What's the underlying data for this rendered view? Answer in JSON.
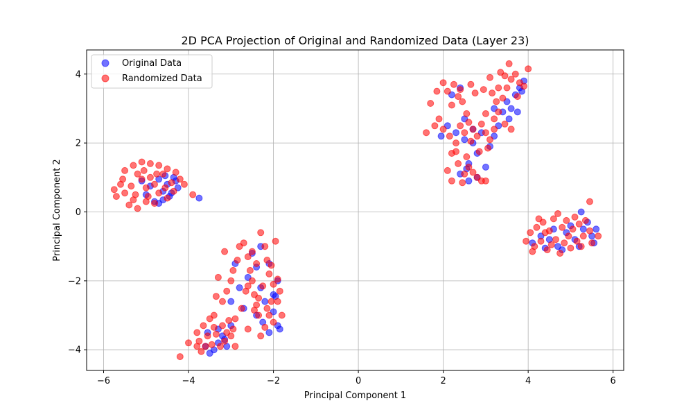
{
  "chart_data": {
    "type": "scatter",
    "title": "2D PCA Projection of Original and Randomized Data (Layer 23)",
    "xlabel": "Principal Component 1",
    "ylabel": "Principal Component 2",
    "xlim": [
      -6.4,
      6.25
    ],
    "ylim": [
      -4.6,
      4.7
    ],
    "xticks": [
      -6,
      -4,
      -2,
      0,
      2,
      4,
      6
    ],
    "xtick_labels": [
      "−6",
      "−4",
      "−2",
      "0",
      "2",
      "4",
      "6"
    ],
    "yticks": [
      -4,
      -2,
      0,
      2,
      4
    ],
    "ytick_labels": [
      "−4",
      "−2",
      "0",
      "2",
      "4"
    ],
    "grid": true,
    "legend_position": "top-left",
    "marker_alpha": 0.55,
    "series": [
      {
        "name": "Original Data",
        "color": "#0000ff",
        "points": [
          [
            -5.1,
            0.9
          ],
          [
            -4.9,
            0.75
          ],
          [
            -4.7,
            0.95
          ],
          [
            -4.6,
            0.6
          ],
          [
            -4.5,
            0.8
          ],
          [
            -4.4,
            0.55
          ],
          [
            -4.3,
            0.9
          ],
          [
            -4.25,
            0.7
          ],
          [
            -4.45,
            0.45
          ],
          [
            -4.6,
            0.35
          ],
          [
            -4.8,
            0.3
          ],
          [
            -5.0,
            0.5
          ],
          [
            -4.7,
            0.25
          ],
          [
            -4.35,
            1.0
          ],
          [
            -4.55,
            1.05
          ],
          [
            -3.75,
            0.4
          ],
          [
            -3.6,
            -3.9
          ],
          [
            -3.5,
            -4.1
          ],
          [
            -3.3,
            -3.8
          ],
          [
            -3.2,
            -3.6
          ],
          [
            -3.3,
            -3.4
          ],
          [
            -3.1,
            -3.9
          ],
          [
            -3.4,
            -4.0
          ],
          [
            -3.15,
            -3.7
          ],
          [
            -3.0,
            -3.3
          ],
          [
            -3.55,
            -3.5
          ],
          [
            -3.0,
            -2.6
          ],
          [
            -2.8,
            -2.2
          ],
          [
            -2.6,
            -1.9
          ],
          [
            -2.4,
            -1.6
          ],
          [
            -2.3,
            -2.2
          ],
          [
            -2.2,
            -2.6
          ],
          [
            -2.0,
            -2.4
          ],
          [
            -1.9,
            -3.3
          ],
          [
            -2.1,
            -3.5
          ],
          [
            -2.5,
            -1.2
          ],
          [
            -2.3,
            -1.0
          ],
          [
            -2.7,
            -2.8
          ],
          [
            -1.9,
            -2.0
          ],
          [
            -2.0,
            -2.9
          ],
          [
            -1.85,
            -3.4
          ],
          [
            -2.4,
            -3.0
          ],
          [
            -2.9,
            -1.5
          ],
          [
            -2.1,
            -1.5
          ],
          [
            -2.25,
            -3.2
          ],
          [
            -1.95,
            -2.45
          ],
          [
            1.95,
            2.2
          ],
          [
            2.1,
            2.5
          ],
          [
            2.3,
            2.3
          ],
          [
            2.5,
            2.1
          ],
          [
            2.7,
            2.0
          ],
          [
            2.9,
            2.3
          ],
          [
            2.8,
            1.7
          ],
          [
            2.6,
            1.4
          ],
          [
            2.4,
            1.1
          ],
          [
            2.6,
            0.9
          ],
          [
            2.8,
            1.0
          ],
          [
            3.0,
            1.3
          ],
          [
            3.1,
            1.9
          ],
          [
            3.2,
            2.2
          ],
          [
            3.3,
            2.5
          ],
          [
            3.4,
            2.9
          ],
          [
            3.5,
            3.2
          ],
          [
            3.6,
            3.0
          ],
          [
            3.7,
            3.4
          ],
          [
            3.8,
            3.6
          ],
          [
            3.9,
            3.8
          ],
          [
            3.85,
            3.5
          ],
          [
            3.55,
            2.7
          ],
          [
            3.75,
            2.9
          ],
          [
            3.2,
            3.0
          ],
          [
            2.2,
            3.4
          ],
          [
            2.4,
            3.6
          ],
          [
            2.5,
            2.7
          ],
          [
            2.7,
            2.4
          ],
          [
            2.55,
            1.25
          ],
          [
            4.1,
            -0.9
          ],
          [
            4.3,
            -0.7
          ],
          [
            4.5,
            -0.8
          ],
          [
            4.7,
            -1.0
          ],
          [
            4.9,
            -0.6
          ],
          [
            5.1,
            -0.8
          ],
          [
            5.3,
            -0.5
          ],
          [
            5.5,
            -0.7
          ],
          [
            5.6,
            -0.5
          ],
          [
            5.2,
            -1.0
          ],
          [
            4.8,
            -1.1
          ],
          [
            5.0,
            -0.4
          ],
          [
            5.25,
            0.0
          ],
          [
            4.6,
            -0.5
          ],
          [
            5.55,
            -0.9
          ],
          [
            5.4,
            -0.3
          ],
          [
            4.4,
            -1.05
          ]
        ]
      },
      {
        "name": "Randomized Data",
        "color": "#ff0000",
        "points": [
          [
            -5.2,
            0.1
          ],
          [
            -4.1,
            0.8
          ],
          [
            -3.9,
            0.5
          ],
          [
            -5.55,
            0.95
          ],
          [
            -5.75,
            0.65
          ],
          [
            -5.7,
            0.45
          ],
          [
            -5.5,
            1.2
          ],
          [
            -5.3,
            1.35
          ],
          [
            -5.1,
            1.45
          ],
          [
            -4.9,
            1.4
          ],
          [
            -4.7,
            1.35
          ],
          [
            -4.5,
            1.25
          ],
          [
            -4.3,
            1.15
          ],
          [
            -4.2,
            0.95
          ],
          [
            -4.35,
            0.6
          ],
          [
            -4.5,
            0.4
          ],
          [
            -4.8,
            0.25
          ],
          [
            -5.0,
            0.3
          ],
          [
            -5.3,
            0.35
          ],
          [
            -5.5,
            0.55
          ],
          [
            -5.6,
            0.8
          ],
          [
            -5.4,
            0.2
          ],
          [
            -5.25,
            0.5
          ],
          [
            -5.2,
            1.1
          ],
          [
            -5.0,
            0.7
          ],
          [
            -4.9,
            1.0
          ],
          [
            -4.8,
            0.8
          ],
          [
            -4.7,
            0.55
          ],
          [
            -4.6,
            1.1
          ],
          [
            -4.4,
            0.85
          ],
          [
            -5.1,
            0.95
          ],
          [
            -5.35,
            0.75
          ],
          [
            -4.95,
            0.45
          ],
          [
            -4.55,
            0.7
          ],
          [
            -5.05,
            1.2
          ],
          [
            -4.75,
            1.1
          ],
          [
            -4.2,
            -4.2
          ],
          [
            -4.0,
            -3.8
          ],
          [
            -3.8,
            -3.5
          ],
          [
            -3.7,
            -4.05
          ],
          [
            -3.65,
            -3.3
          ],
          [
            -3.5,
            -3.1
          ],
          [
            -3.4,
            -3.0
          ],
          [
            -3.2,
            -3.3
          ],
          [
            -3.1,
            -3.5
          ],
          [
            -3.0,
            -3.6
          ],
          [
            -2.9,
            -3.9
          ],
          [
            -2.95,
            -3.4
          ],
          [
            -3.45,
            -3.85
          ],
          [
            -3.55,
            -3.6
          ],
          [
            -3.35,
            -3.55
          ],
          [
            -3.25,
            -3.9
          ],
          [
            -3.6,
            -3.9
          ],
          [
            -3.8,
            -3.9
          ],
          [
            -3.4,
            -3.35
          ],
          [
            -3.15,
            -3.75
          ],
          [
            -3.05,
            -3.15
          ],
          [
            -3.75,
            -3.75
          ],
          [
            -3.2,
            -2.6
          ],
          [
            -3.1,
            -2.3
          ],
          [
            -3.0,
            -2.0
          ],
          [
            -2.95,
            -1.7
          ],
          [
            -2.85,
            -1.4
          ],
          [
            -2.8,
            -1.0
          ],
          [
            -2.7,
            -0.9
          ],
          [
            -2.6,
            -1.3
          ],
          [
            -2.55,
            -1.7
          ],
          [
            -2.5,
            -2.0
          ],
          [
            -2.45,
            -2.4
          ],
          [
            -2.4,
            -2.7
          ],
          [
            -2.35,
            -3.0
          ],
          [
            -2.3,
            -0.6
          ],
          [
            -2.2,
            -1.0
          ],
          [
            -2.15,
            -1.4
          ],
          [
            -2.1,
            -1.8
          ],
          [
            -2.0,
            -2.1
          ],
          [
            -1.9,
            -1.95
          ],
          [
            -1.85,
            -2.3
          ],
          [
            -2.05,
            -2.6
          ],
          [
            -2.1,
            -3.0
          ],
          [
            -2.2,
            -3.35
          ],
          [
            -2.3,
            -3.6
          ],
          [
            -2.0,
            -3.2
          ],
          [
            -1.95,
            -0.85
          ],
          [
            -2.4,
            -1.5
          ],
          [
            -2.65,
            -2.3
          ],
          [
            -2.75,
            -2.8
          ],
          [
            -2.9,
            -3.1
          ],
          [
            -3.3,
            -1.9
          ],
          [
            -3.35,
            -2.45
          ],
          [
            -3.15,
            -1.15
          ],
          [
            -2.5,
            -1.15
          ],
          [
            -2.25,
            -2.15
          ],
          [
            -1.8,
            -3.0
          ],
          [
            -2.6,
            -3.4
          ],
          [
            -2.45,
            -2.85
          ],
          [
            -2.05,
            -1.55
          ],
          [
            -2.35,
            -2.5
          ],
          [
            -2.15,
            -2.8
          ],
          [
            -1.9,
            -2.6
          ],
          [
            -2.6,
            -2.15
          ],
          [
            1.6,
            2.3
          ],
          [
            1.7,
            3.15
          ],
          [
            1.8,
            2.5
          ],
          [
            1.9,
            2.7
          ],
          [
            1.85,
            3.5
          ],
          [
            2.0,
            3.75
          ],
          [
            2.2,
            3.1
          ],
          [
            2.1,
            3.5
          ],
          [
            2.25,
            3.7
          ],
          [
            2.35,
            3.35
          ],
          [
            2.4,
            3.55
          ],
          [
            2.45,
            3.2
          ],
          [
            2.0,
            2.4
          ],
          [
            2.15,
            2.2
          ],
          [
            2.3,
            2.0
          ],
          [
            2.2,
            1.7
          ],
          [
            2.1,
            1.2
          ],
          [
            2.2,
            0.9
          ],
          [
            2.35,
            1.4
          ],
          [
            2.5,
            1.1
          ],
          [
            2.6,
            1.3
          ],
          [
            2.7,
            1.15
          ],
          [
            2.8,
            1.0
          ],
          [
            2.9,
            0.9
          ],
          [
            2.45,
            0.85
          ],
          [
            2.3,
            1.75
          ],
          [
            2.55,
            1.6
          ],
          [
            2.4,
            2.5
          ],
          [
            2.5,
            2.3
          ],
          [
            2.6,
            2.6
          ],
          [
            2.7,
            2.4
          ],
          [
            2.8,
            2.2
          ],
          [
            2.9,
            2.55
          ],
          [
            3.0,
            2.3
          ],
          [
            3.1,
            2.1
          ],
          [
            3.2,
            2.7
          ],
          [
            3.3,
            2.9
          ],
          [
            3.25,
            3.2
          ],
          [
            3.15,
            3.45
          ],
          [
            3.3,
            3.6
          ],
          [
            3.4,
            3.3
          ],
          [
            3.5,
            3.6
          ],
          [
            3.6,
            3.85
          ],
          [
            3.7,
            4.0
          ],
          [
            3.8,
            3.75
          ],
          [
            3.9,
            3.65
          ],
          [
            4.0,
            4.15
          ],
          [
            3.55,
            4.3
          ],
          [
            3.35,
            4.05
          ],
          [
            3.1,
            3.9
          ],
          [
            3.0,
            2.85
          ],
          [
            2.95,
            3.55
          ],
          [
            2.75,
            3.45
          ],
          [
            2.65,
            3.7
          ],
          [
            3.45,
            2.55
          ],
          [
            3.6,
            2.4
          ],
          [
            3.05,
            1.85
          ],
          [
            2.85,
            1.75
          ],
          [
            2.55,
            2.85
          ],
          [
            2.65,
            2.05
          ],
          [
            3.45,
            3.95
          ],
          [
            3.75,
            3.35
          ],
          [
            3.2,
            2.4
          ],
          [
            3.0,
            0.9
          ],
          [
            3.95,
            -0.85
          ],
          [
            4.05,
            -0.6
          ],
          [
            4.15,
            -1.0
          ],
          [
            4.2,
            -0.45
          ],
          [
            4.3,
            -0.85
          ],
          [
            4.35,
            -0.3
          ],
          [
            4.45,
            -1.1
          ],
          [
            4.5,
            -0.55
          ],
          [
            4.6,
            -0.2
          ],
          [
            4.65,
            -0.8
          ],
          [
            4.7,
            -0.05
          ],
          [
            4.75,
            -1.2
          ],
          [
            4.8,
            -0.45
          ],
          [
            4.85,
            -0.9
          ],
          [
            4.9,
            -0.25
          ],
          [
            4.95,
            -0.7
          ],
          [
            5.0,
            -1.05
          ],
          [
            5.05,
            -0.5
          ],
          [
            5.1,
            -0.15
          ],
          [
            5.15,
            -0.85
          ],
          [
            5.2,
            -0.35
          ],
          [
            5.3,
            -0.7
          ],
          [
            5.35,
            -0.25
          ],
          [
            5.45,
            -0.55
          ],
          [
            5.5,
            -0.9
          ],
          [
            5.45,
            0.3
          ],
          [
            4.4,
            -0.6
          ],
          [
            4.55,
            -0.95
          ],
          [
            4.25,
            -0.2
          ],
          [
            5.25,
            -1.0
          ],
          [
            5.65,
            -0.7
          ],
          [
            4.1,
            -1.15
          ]
        ]
      }
    ]
  }
}
